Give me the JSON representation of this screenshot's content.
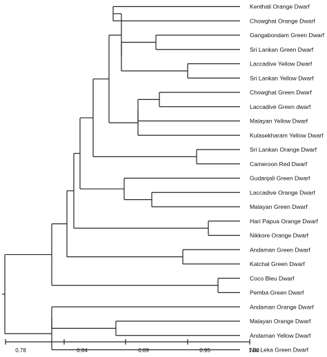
{
  "leaves": [
    "Kenthali Orange Dwarf",
    "Chowghat Orange Dwarf",
    "Gangabondam Green Dwarf",
    "Sri Lankan Green Dwarf",
    "Laccadive Yellow Dwarf",
    "Sri Lankan Yellow Dwarf",
    "Chowghat Green Dwarf",
    "Laccadive Green dwarf",
    "Malayan Yellow Dwarf",
    "Kulasekharam Yellow Dwarf",
    "Sri Lankan Orange Dwarf",
    "Cameroon Red Dwarf",
    "Gudanjali Green Dwarf",
    "Laccadive Orange Dwarf",
    "Malayan Green Dwarf",
    "Hari Papua Orange Dwarf",
    "Nikkore Orange Dwarf",
    "Andaman Green Dwarf",
    "Katchal Green Dwarf",
    "Coco Bleu Dwarf",
    "Pemba Green Dwarf",
    "Andaman Orange Dwarf",
    "Malayan Orange Dwarf",
    "Andaman Yellow Dwarf",
    "Niu Leka Green Dwarf"
  ],
  "scale": {
    "ticks": [
      "0.78",
      "0.84",
      "0.89",
      "0.95",
      "1.00"
    ]
  }
}
